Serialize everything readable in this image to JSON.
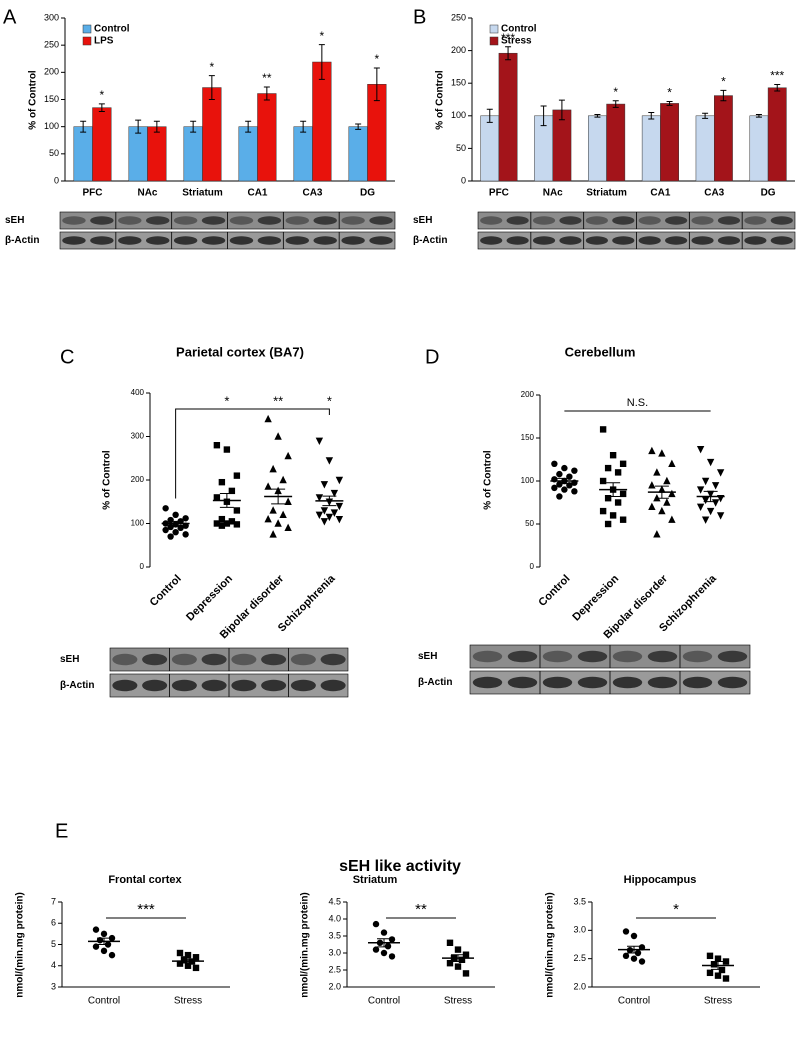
{
  "chart_data": [
    {
      "type": "bar",
      "panel": "A",
      "ylabel": "% of Control",
      "categories": [
        "PFC",
        "NAc",
        "Striatum",
        "CA1",
        "CA3",
        "DG"
      ],
      "series": [
        {
          "name": "Control",
          "color": "#5aaee8",
          "values": [
            100,
            100,
            100,
            100,
            100,
            100
          ],
          "errors": [
            10,
            12,
            10,
            10,
            10,
            5
          ]
        },
        {
          "name": "LPS",
          "color": "#e8120c",
          "values": [
            135,
            100,
            172,
            161,
            219,
            178
          ],
          "errors": [
            7,
            10,
            22,
            12,
            32,
            30
          ]
        }
      ],
      "annotations": [
        "*",
        null,
        "*",
        "**",
        "*",
        "*"
      ],
      "ylim": [
        0,
        300
      ],
      "yticks": [
        0,
        50,
        100,
        150,
        200,
        250,
        300
      ],
      "legend": "top-left",
      "blot_labels": [
        "sEH",
        "β-Actin"
      ]
    },
    {
      "type": "bar",
      "panel": "B",
      "ylabel": "% of Control",
      "categories": [
        "PFC",
        "NAc",
        "Striatum",
        "CA1",
        "CA3",
        "DG"
      ],
      "series": [
        {
          "name": "Control",
          "color": "#c6d8ee",
          "values": [
            100,
            100,
            100,
            100,
            100,
            100
          ],
          "errors": [
            10,
            15,
            2,
            5,
            4,
            2
          ]
        },
        {
          "name": "Stress",
          "color": "#a3141a",
          "values": [
            196,
            109,
            118,
            119,
            131,
            143
          ],
          "errors": [
            10,
            15,
            5,
            3,
            8,
            5
          ]
        }
      ],
      "annotations": [
        "***",
        null,
        "*",
        "*",
        "*",
        "***"
      ],
      "ylim": [
        0,
        250
      ],
      "yticks": [
        0,
        50,
        100,
        150,
        200,
        250
      ],
      "legend": "top-left",
      "blot_labels": [
        "sEH",
        "β-Actin"
      ]
    },
    {
      "type": "strip",
      "panel": "C",
      "title": "Parietal cortex (BA7)",
      "ylabel": "% of Control",
      "categories": [
        "Control",
        "Depression",
        "Bipolar disorder",
        "Schizophrenia"
      ],
      "markers": [
        "circle",
        "square",
        "triangle-up",
        "triangle-down"
      ],
      "groups": [
        [
          135,
          120,
          112,
          108,
          105,
          100,
          98,
          95,
          92,
          90,
          85,
          80,
          75,
          70
        ],
        [
          280,
          270,
          210,
          195,
          175,
          160,
          150,
          130,
          110,
          105,
          100,
          100,
          98,
          95
        ],
        [
          340,
          300,
          255,
          225,
          200,
          185,
          175,
          150,
          130,
          120,
          110,
          100,
          90,
          75
        ],
        [
          290,
          245,
          200,
          190,
          170,
          160,
          150,
          140,
          130,
          125,
          120,
          115,
          110,
          105
        ]
      ],
      "means": [
        100,
        153,
        162,
        152
      ],
      "sems": [
        5,
        16,
        17,
        11
      ],
      "annotations": [
        null,
        "*",
        "**",
        "*"
      ],
      "ylim": [
        0,
        400
      ],
      "yticks": [
        0,
        100,
        200,
        300,
        400
      ],
      "blot_labels": [
        "sEH",
        "β-Actin"
      ]
    },
    {
      "type": "strip",
      "panel": "D",
      "title": "Cerebellum",
      "ylabel": "% of Control",
      "categories": [
        "Control",
        "Depression",
        "Bipolar disorder",
        "Schizophrenia"
      ],
      "markers": [
        "circle",
        "square",
        "triangle-up",
        "triangle-down"
      ],
      "groups": [
        [
          120,
          115,
          112,
          108,
          105,
          102,
          100,
          98,
          96,
          95,
          92,
          90,
          88,
          82
        ],
        [
          160,
          130,
          120,
          115,
          110,
          100,
          90,
          85,
          80,
          75,
          65,
          60,
          55,
          50
        ],
        [
          135,
          132,
          120,
          110,
          100,
          95,
          90,
          85,
          80,
          75,
          70,
          65,
          55,
          38
        ],
        [
          137,
          122,
          110,
          100,
          95,
          90,
          85,
          80,
          78,
          75,
          70,
          65,
          60,
          55
        ]
      ],
      "means": [
        100,
        90,
        87,
        82
      ],
      "sems": [
        3,
        8,
        7,
        6
      ],
      "annotation": "N.S.",
      "ylim": [
        0,
        200
      ],
      "yticks": [
        0,
        50,
        100,
        150,
        200
      ],
      "blot_labels": [
        "sEH",
        "β-Actin"
      ]
    },
    {
      "type": "strip",
      "title": "Frontal cortex",
      "ylabel": "nmol/(min.mg protein)",
      "categories": [
        "Control",
        "Stress"
      ],
      "markers": [
        "circle",
        "square"
      ],
      "groups": [
        [
          5.7,
          5.5,
          5.3,
          5.2,
          5.0,
          4.9,
          4.7,
          4.5
        ],
        [
          4.6,
          4.5,
          4.4,
          4.3,
          4.2,
          4.1,
          4.0,
          3.9
        ]
      ],
      "means": [
        5.15,
        4.22
      ],
      "sems": [
        0.15,
        0.09
      ],
      "annotation": "***",
      "ylim": [
        3,
        7
      ],
      "yticks": [
        3,
        4,
        5,
        6,
        7
      ]
    },
    {
      "type": "strip",
      "title": "Striatum",
      "ylabel": "nmol/(min.mg protein)",
      "categories": [
        "Control",
        "Stress"
      ],
      "markers": [
        "circle",
        "square"
      ],
      "groups": [
        [
          3.85,
          3.6,
          3.4,
          3.3,
          3.2,
          3.1,
          3.0,
          2.9
        ],
        [
          3.3,
          3.1,
          2.95,
          2.85,
          2.8,
          2.7,
          2.6,
          2.4
        ]
      ],
      "means": [
        3.3,
        2.85
      ],
      "sems": [
        0.12,
        0.1
      ],
      "annotation": "**",
      "ylim": [
        2,
        4.5
      ],
      "yticks": [
        {
          "value": 2,
          "label": "2.0"
        },
        2.5,
        {
          "value": 3,
          "label": "3.0"
        },
        3.5,
        {
          "value": 4,
          "label": "4.0"
        },
        4.5
      ]
    },
    {
      "type": "strip",
      "title": "Hippocampus",
      "ylabel": "nmol/(min.mg protein)",
      "categories": [
        "Control",
        "Stress"
      ],
      "markers": [
        "circle",
        "square"
      ],
      "groups": [
        [
          2.98,
          2.9,
          2.7,
          2.65,
          2.6,
          2.55,
          2.5,
          2.45
        ],
        [
          2.55,
          2.5,
          2.45,
          2.4,
          2.3,
          2.25,
          2.2,
          2.15
        ]
      ],
      "means": [
        2.66,
        2.38
      ],
      "sems": [
        0.06,
        0.07
      ],
      "annotation": "*",
      "ylim": [
        2,
        3.5
      ],
      "yticks": [
        {
          "value": 2,
          "label": "2.0"
        },
        2.5,
        {
          "value": 3,
          "label": "3.0"
        },
        3.5
      ]
    }
  ],
  "panel_e": {
    "panel": "E",
    "title": "sEH like activity"
  }
}
